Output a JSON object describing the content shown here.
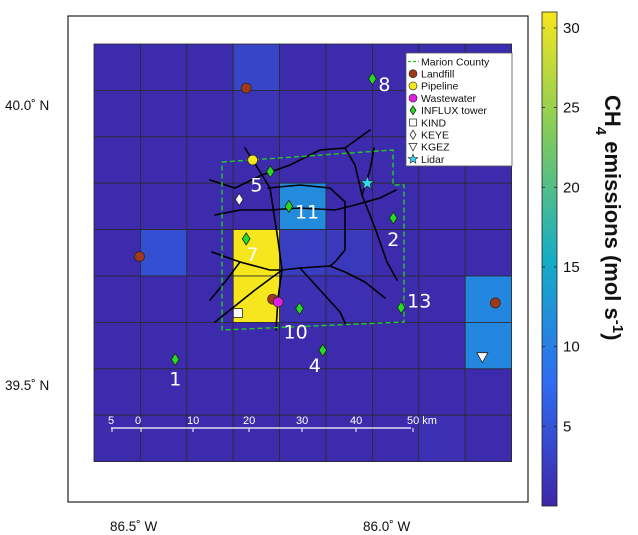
{
  "map": {
    "lat_labels": [
      {
        "value": 40.0,
        "text": "40.0˚ N"
      },
      {
        "value": 39.5,
        "text": "39.5˚ N"
      }
    ],
    "lon_labels": [
      {
        "value": -86.5,
        "text": "86.5˚ W"
      },
      {
        "value": -86.0,
        "text": "86.0˚ W"
      }
    ],
    "scale_bar": {
      "labels": [
        "5",
        "0",
        "10",
        "20",
        "30",
        "40",
        "50 km"
      ]
    }
  },
  "legend": {
    "items": [
      {
        "label": "Marion County",
        "symbol": "dashed-line",
        "color": "#22cc22"
      },
      {
        "label": "Landfill",
        "symbol": "circle",
        "color": "#a0381a"
      },
      {
        "label": "Pipeline",
        "symbol": "circle",
        "color": "#f5e61e"
      },
      {
        "label": "Wastewater",
        "symbol": "circle",
        "color": "#e020e0"
      },
      {
        "label": "INFLUX tower",
        "symbol": "diamond",
        "color": "#22dd22"
      },
      {
        "label": "KIND",
        "symbol": "square",
        "color": "#ffffff"
      },
      {
        "label": "KEYE",
        "symbol": "diamond",
        "color": "#ffffff"
      },
      {
        "label": "KGEZ",
        "symbol": "triangle-down",
        "color": "#ffffff"
      },
      {
        "label": "Lidar",
        "symbol": "star",
        "color": "#33ddee"
      }
    ]
  },
  "towers": [
    {
      "id": "1"
    },
    {
      "id": "2"
    },
    {
      "id": "4"
    },
    {
      "id": "5"
    },
    {
      "id": "7"
    },
    {
      "id": "8"
    },
    {
      "id": "10"
    },
    {
      "id": "11"
    },
    {
      "id": "13"
    }
  ],
  "colorbar": {
    "title_prefix": "CH",
    "title_sub": "4",
    "title_main": " emissions (mol s",
    "title_sup": "-1",
    "title_end": ")",
    "range": [
      0,
      31
    ],
    "ticks": [
      5,
      10,
      15,
      20,
      25,
      30
    ],
    "colormap": [
      "#3e26a8",
      "#2f6cf1",
      "#15adc5",
      "#7fca5d",
      "#f5e61e"
    ]
  },
  "chart_data": {
    "type": "heatmap",
    "title": "",
    "colorbar_label": "CH4 emissions (mol s-1)",
    "grid": {
      "rows": 9,
      "cols": 9,
      "background_value": 0.5
    },
    "cells": [
      {
        "row": 0,
        "col": 3,
        "value": 3.5
      },
      {
        "row": 1,
        "col": 3,
        "value": 1.5
      },
      {
        "row": 3,
        "col": 4,
        "value": 11.5
      },
      {
        "row": 4,
        "col": 1,
        "value": 4.5
      },
      {
        "row": 4,
        "col": 3,
        "value": 31
      },
      {
        "row": 4,
        "col": 4,
        "value": 2.5
      },
      {
        "row": 4,
        "col": 5,
        "value": 2.0
      },
      {
        "row": 5,
        "col": 3,
        "value": 31
      },
      {
        "row": 5,
        "col": 4,
        "value": 1.2
      },
      {
        "row": 5,
        "col": 5,
        "value": 1.0
      },
      {
        "row": 5,
        "col": 8,
        "value": 11.0
      },
      {
        "row": 6,
        "col": 8,
        "value": 11.0
      },
      {
        "row": 8,
        "col": 7,
        "value": 1.2
      }
    ],
    "sources": [
      {
        "type": "Landfill",
        "col": 3.28,
        "row": 0.95
      },
      {
        "type": "Landfill",
        "col": 0.98,
        "row": 4.58
      },
      {
        "type": "Landfill",
        "col": 3.85,
        "row": 5.5
      },
      {
        "type": "Landfill",
        "col": 8.65,
        "row": 5.58
      },
      {
        "type": "Pipeline",
        "col": 3.42,
        "row": 2.5
      },
      {
        "type": "Wastewater",
        "col": 3.97,
        "row": 5.56
      },
      {
        "type": "KIND",
        "col": 3.1,
        "row": 5.8
      },
      {
        "type": "KEYE",
        "col": 3.13,
        "row": 3.35
      },
      {
        "type": "KGEZ",
        "col": 8.37,
        "row": 6.75
      },
      {
        "type": "Lidar",
        "col": 5.89,
        "row": 3.0
      },
      {
        "type": "INFLUX tower",
        "id": "1",
        "col": 1.75,
        "row": 6.8
      },
      {
        "type": "INFLUX tower",
        "id": "2",
        "col": 6.45,
        "row": 3.75
      },
      {
        "type": "INFLUX tower",
        "id": "4",
        "col": 4.93,
        "row": 6.6
      },
      {
        "type": "INFLUX tower",
        "id": "5",
        "col": 3.8,
        "row": 2.75
      },
      {
        "type": "INFLUX tower",
        "id": "7",
        "col": 3.28,
        "row": 4.2
      },
      {
        "type": "INFLUX tower",
        "id": "8",
        "col": 6.0,
        "row": 0.75
      },
      {
        "type": "INFLUX tower",
        "id": "10",
        "col": 4.43,
        "row": 5.7
      },
      {
        "type": "INFLUX tower",
        "id": "11",
        "col": 4.2,
        "row": 3.5
      },
      {
        "type": "INFLUX tower",
        "id": "13",
        "col": 6.62,
        "row": 5.68
      }
    ]
  }
}
